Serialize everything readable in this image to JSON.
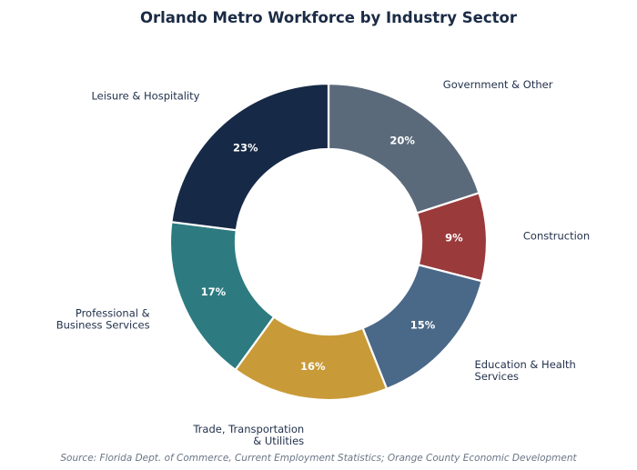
{
  "chart_data": {
    "type": "pie",
    "title": "Orlando Metro Workforce by Industry Sector",
    "donut": true,
    "slices": [
      {
        "label": "Government & Other",
        "value": 20,
        "display": "20%",
        "color": "#5b6a7b"
      },
      {
        "label": "Construction",
        "value": 9,
        "display": "9%",
        "color": "#9a3a3b"
      },
      {
        "label": "Education & Health Services",
        "value": 15,
        "display": "15%",
        "color": "#4a6888"
      },
      {
        "label": "Trade, Transportation & Utilities",
        "value": 16,
        "display": "16%",
        "color": "#c99a38"
      },
      {
        "label": "Professional & Business Services",
        "value": 17,
        "display": "17%",
        "color": "#2d7b80"
      },
      {
        "label": "Leisure & Hospitality",
        "value": 23,
        "display": "23%",
        "color": "#162946"
      }
    ],
    "source": "Source: Florida Dept. of Commerce, Current Employment Statistics; Orange County Economic Development"
  }
}
